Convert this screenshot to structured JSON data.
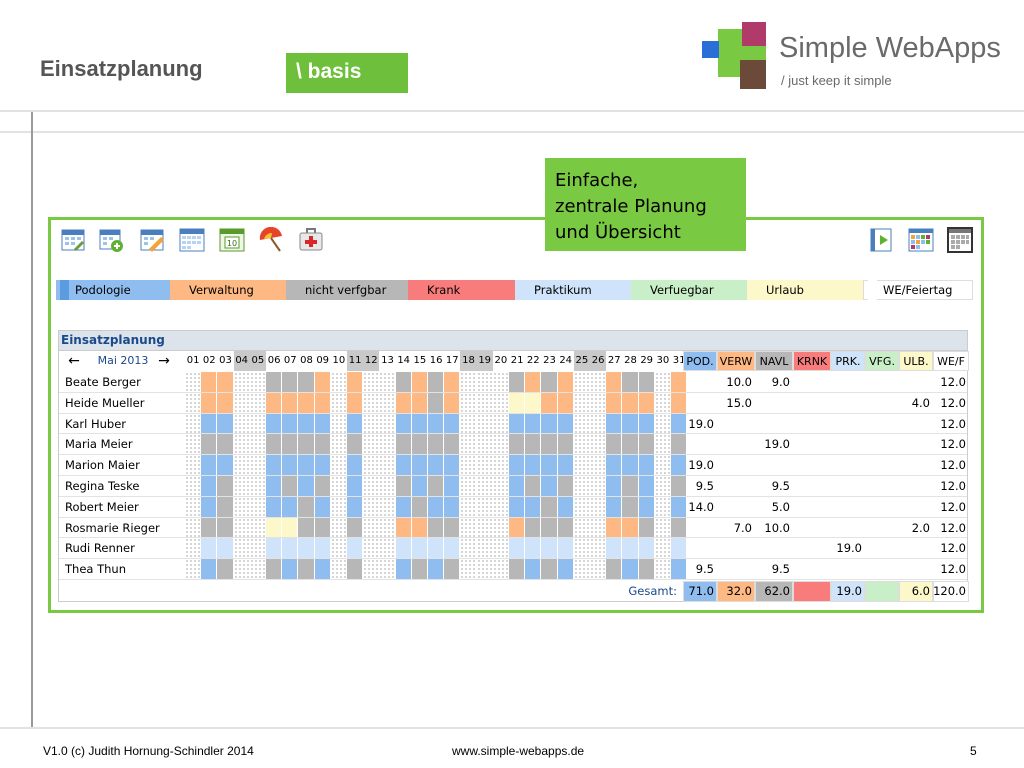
{
  "slide": {
    "title": "Einsatzplanung",
    "tag": "\\ basis",
    "brand_name": "Simple WebApps",
    "brand_tagline": "/ just keep it simple",
    "callout": [
      "Einfache,",
      "zentrale Planung",
      "und Übersicht"
    ],
    "footer_left": "V1.0  (c) Judith Hornung-Schindler 2014",
    "footer_center": "www.simple-webapps.de",
    "footer_page": "5"
  },
  "toolbar": {
    "left_icons": [
      "calendar-edit-icon",
      "calendar-add-icon",
      "calendar-pencil-icon",
      "calendar-month-icon",
      "calendar-day-icon",
      "beach-umbrella-icon",
      "first-aid-kit-icon"
    ],
    "right_icons": [
      "export-icon",
      "calendar-color-view-icon",
      "calendar-gray-view-icon"
    ]
  },
  "legend": [
    {
      "label": "Podologie",
      "color": "#8fbdf0"
    },
    {
      "label": "Verwaltung",
      "color": "#fdb883"
    },
    {
      "label": "nicht verfgbar",
      "color": "#b7b7b7"
    },
    {
      "label": "Krank",
      "color": "#f87c7c"
    },
    {
      "label": "Praktikum",
      "color": "#cfe3fb"
    },
    {
      "label": "Verfuegbar",
      "color": "#c9efc9"
    },
    {
      "label": "Urlaub",
      "color": "#fdf8c9"
    },
    {
      "label": "WE/Feiertag",
      "color": "#ffffff"
    }
  ],
  "planner": {
    "title": "Einsatzplanung",
    "month": "Mai 2013",
    "prev_arrow": "←",
    "next_arrow": "→",
    "days": [
      "01",
      "02",
      "03",
      "04",
      "05",
      "06",
      "07",
      "08",
      "09",
      "10",
      "11",
      "12",
      "13",
      "14",
      "15",
      "16",
      "17",
      "18",
      "19",
      "20",
      "21",
      "22",
      "23",
      "24",
      "25",
      "26",
      "27",
      "28",
      "29",
      "30",
      "31"
    ],
    "weekend_days": [
      4,
      5,
      11,
      12,
      18,
      19,
      25,
      26
    ],
    "summary_headers": [
      "POD.",
      "VERW",
      "NAVL",
      "KRNK",
      "PRK.",
      "VFG.",
      "ULB.",
      "WE/F"
    ],
    "summary_colors": [
      "#8fbdf0",
      "#fdb883",
      "#b7b7b7",
      "#f87c7c",
      "#cfe3fb",
      "#c9efc9",
      "#fdf8c9",
      "#ffffff"
    ],
    "rows": [
      {
        "name": "Beate Berger",
        "codes": "HVVWWNNNVHVWWNVNVWWHNVNVWWVNNHV",
        "sum": [
          "",
          "10.0",
          "9.0",
          "",
          "",
          "",
          "",
          "12.0"
        ]
      },
      {
        "name": "Heide Mueller",
        "codes": "HVVWWVVVVHVWWVVNVWWHUUVVWWVVVHV",
        "sum": [
          "",
          "15.0",
          "",
          "",
          "",
          "",
          "4.0",
          "12.0"
        ]
      },
      {
        "name": "Karl Huber",
        "codes": "HPPWWPPPPHPWWPPPPWWHPPPPWWPPPHP",
        "sum": [
          "19.0",
          "",
          "",
          "",
          "",
          "",
          "",
          "12.0"
        ]
      },
      {
        "name": "Maria Meier",
        "codes": "HNNWWNNNNHNWWNNNNWWHNNNNWWNNNHN",
        "sum": [
          "",
          "",
          "19.0",
          "",
          "",
          "",
          "",
          "12.0"
        ]
      },
      {
        "name": "Marion Maier",
        "codes": "HPPWWPPPPHPWWPPPPWWHPPPPWWPPPHP",
        "sum": [
          "19.0",
          "",
          "",
          "",
          "",
          "",
          "",
          "12.0"
        ]
      },
      {
        "name": "Regina Teske",
        "codes": "HPNWWPNPNHPWWNPNPWWHPNPNWWPNPHN",
        "sum": [
          "9.5",
          "",
          "9.5",
          "",
          "",
          "",
          "",
          "12.0"
        ]
      },
      {
        "name": "Robert Meier",
        "codes": "HPNWWPPNPHPWWPNPPWWHPPNPWWPNPHP",
        "sum": [
          "14.0",
          "",
          "5.0",
          "",
          "",
          "",
          "",
          "12.0"
        ]
      },
      {
        "name": "Rosmarie Rieger",
        "codes": "HNNWWUUNNHNWWVVNNWWHVNNNWWVVNHN",
        "sum": [
          "",
          "7.0",
          "10.0",
          "",
          "",
          "",
          "2.0",
          "12.0"
        ]
      },
      {
        "name": "Rudi Renner",
        "codes": "HRRWWRRRRHRWWRRRRWWHRRRRWWRRRHR",
        "sum": [
          "",
          "",
          "",
          "",
          "19.0",
          "",
          "",
          "12.0"
        ]
      },
      {
        "name": "Thea Thun",
        "codes": "HPNWWNPNPHNWWPNPNWWHNPNPWWNPNHP",
        "sum": [
          "9.5",
          "",
          "9.5",
          "",
          "",
          "",
          "",
          "12.0"
        ]
      }
    ],
    "total_label": "Gesamt:",
    "totals": [
      "71.0",
      "32.0",
      "62.0",
      "",
      "19.0",
      "",
      "6.0",
      "120.0"
    ]
  }
}
